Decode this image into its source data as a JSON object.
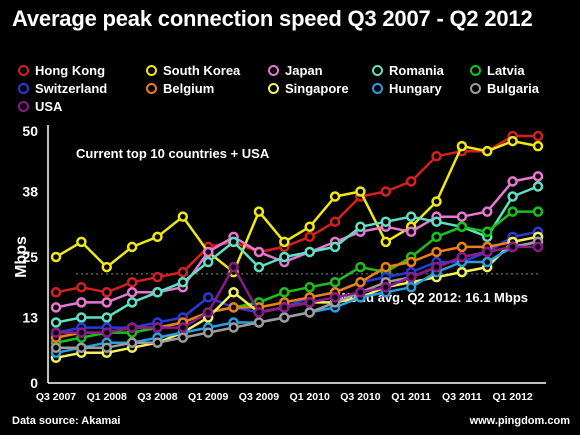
{
  "title": "Average peak connection speed Q3 2007 - Q2 2012",
  "source": "Data source: Akamai",
  "site": "www.pingdom.com",
  "chart_data": {
    "type": "line",
    "ylabel": "Mbps",
    "annotation": "Current top 10 countries + USA",
    "world_avg": {
      "label": "World avg. Q2 2012: 16.1 Mbps",
      "value": 16.1
    },
    "ylim": [
      0,
      50
    ],
    "yticks": [
      0,
      13,
      25,
      38,
      50
    ],
    "x_labels": [
      "Q3 2007",
      "Q1 2008",
      "Q3 2008",
      "Q1 2009",
      "Q3 2009",
      "Q1 2010",
      "Q3 2010",
      "Q1 2011",
      "Q3 2011",
      "Q1 2012"
    ],
    "x": [
      "Q3 2007",
      "Q4 2007",
      "Q1 2008",
      "Q2 2008",
      "Q3 2008",
      "Q4 2008",
      "Q1 2009",
      "Q2 2009",
      "Q3 2009",
      "Q4 2009",
      "Q1 2010",
      "Q2 2010",
      "Q3 2010",
      "Q4 2010",
      "Q1 2011",
      "Q2 2011",
      "Q3 2011",
      "Q4 2011",
      "Q1 2012",
      "Q2 2012"
    ],
    "series": [
      {
        "name": "Hong Kong",
        "color": "#d42020",
        "values": [
          18,
          19,
          18,
          20,
          21,
          22,
          27,
          28,
          26,
          27,
          29,
          32,
          37,
          38,
          40,
          45,
          46,
          46,
          49,
          49
        ]
      },
      {
        "name": "South Korea",
        "color": "#f0e812",
        "values": [
          25,
          28,
          23,
          27,
          29,
          33,
          26,
          22,
          34,
          28,
          31,
          37,
          38,
          28,
          31,
          36,
          47,
          46,
          48,
          47
        ]
      },
      {
        "name": "Japan",
        "color": "#e678d2",
        "values": [
          15,
          16,
          16,
          18,
          18,
          19,
          26,
          29,
          26,
          24,
          26,
          28,
          30,
          31,
          30,
          33,
          33,
          34,
          40,
          41
        ]
      },
      {
        "name": "Romania",
        "color": "#5fe0c2",
        "values": [
          12,
          13,
          13,
          16,
          18,
          20,
          24,
          28,
          23,
          25,
          26,
          27,
          31,
          32,
          33,
          32,
          31,
          29,
          37,
          39
        ]
      },
      {
        "name": "Latvia",
        "color": "#19c219",
        "values": [
          8,
          9,
          10,
          10,
          11,
          12,
          14,
          15,
          16,
          18,
          19,
          20,
          23,
          22,
          25,
          29,
          31,
          30,
          34,
          34
        ]
      },
      {
        "name": "Switzerland",
        "color": "#2a3ad8",
        "values": [
          10,
          11,
          11,
          11,
          12,
          13,
          17,
          15,
          14,
          15,
          17,
          18,
          20,
          21,
          22,
          24,
          24,
          26,
          29,
          30
        ]
      },
      {
        "name": "Belgium",
        "color": "#ec8018",
        "values": [
          9,
          10,
          10,
          11,
          11,
          12,
          14,
          15,
          15,
          16,
          17,
          18,
          20,
          23,
          24,
          26,
          27,
          27,
          28,
          29
        ]
      },
      {
        "name": "Singapore",
        "color": "#f4f060",
        "values": [
          5,
          6,
          6,
          7,
          8,
          10,
          13,
          18,
          14,
          15,
          16,
          16,
          17,
          19,
          20,
          21,
          22,
          23,
          28,
          29
        ]
      },
      {
        "name": "Hungary",
        "color": "#28a0e0",
        "values": [
          6,
          7,
          8,
          8,
          9,
          10,
          11,
          12,
          12,
          13,
          14,
          15,
          17,
          18,
          19,
          22,
          24,
          24,
          27,
          28
        ]
      },
      {
        "name": "Bulgaria",
        "color": "#9c9c9c",
        "values": [
          7,
          7,
          7,
          8,
          8,
          9,
          10,
          11,
          12,
          13,
          14,
          16,
          18,
          20,
          21,
          23,
          25,
          26,
          27,
          28
        ]
      },
      {
        "name": "USA",
        "color": "#8a1a8a",
        "values": [
          10,
          10,
          10,
          11,
          11,
          11,
          14,
          23,
          14,
          15,
          16,
          17,
          18,
          19,
          21,
          23,
          25,
          26,
          27,
          27
        ]
      }
    ],
    "legend_placement": "top",
    "grid": false
  }
}
